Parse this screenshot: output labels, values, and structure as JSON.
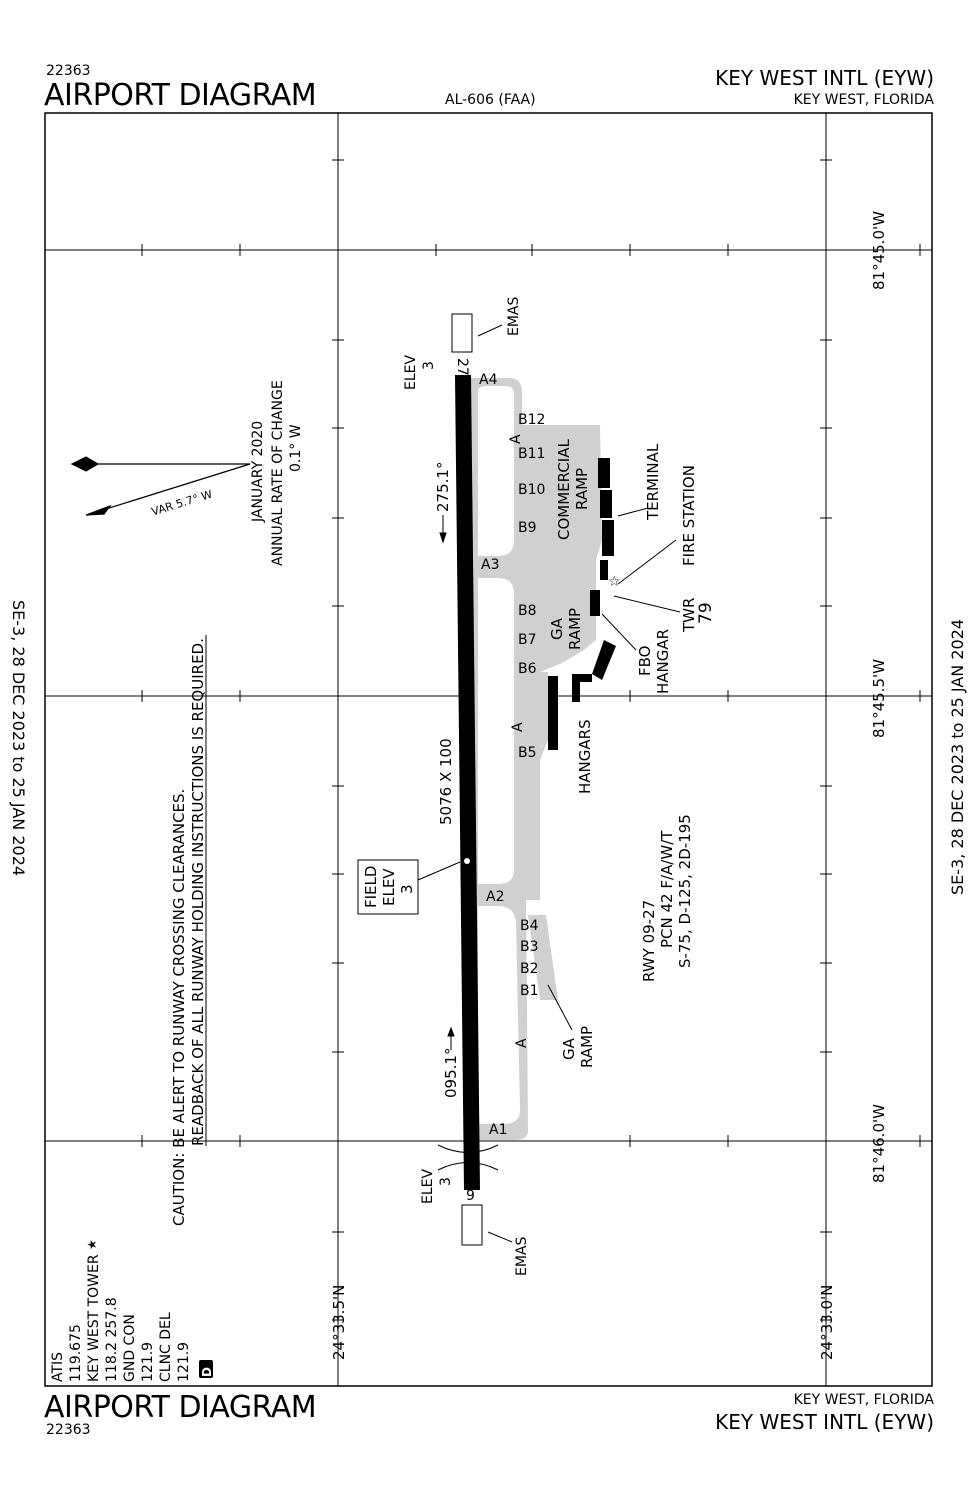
{
  "header": {
    "procedure_number": "22363",
    "title": "AIRPORT DIAGRAM",
    "chart_id": "AL-606 (FAA)",
    "airport_name": "KEY WEST INTL (EYW)",
    "city_state": "KEY WEST, FLORIDA"
  },
  "footer": {
    "title": "AIRPORT DIAGRAM",
    "procedure_number": "22363",
    "city_state": "KEY WEST, FLORIDA",
    "airport_name": "KEY WEST INTL (EYW)"
  },
  "validity": {
    "left": "SE-3,  28 DEC 2023  to  25 JAN 2024",
    "right": "SE-3,  28 DEC 2023  to  25 JAN 2024"
  },
  "coordinates": {
    "lon_top": "81°45.0'W",
    "lon_mid": "81°45.5'W",
    "lon_bot": "81°46.0'W",
    "lat_left": "24°33.5'N",
    "lat_right": "24°33.0'N"
  },
  "magnetic": {
    "var": "VAR 5.7° W",
    "date": "JANUARY 2020",
    "rate_label": "ANNUAL RATE OF CHANGE",
    "rate": "0.1° W"
  },
  "caution": {
    "line1": "CAUTION: BE ALERT TO RUNWAY CROSSING CLEARANCES.",
    "line2": "READBACK OF ALL RUNWAY HOLDING INSTRUCTIONS IS REQUIRED."
  },
  "frequencies": {
    "lines": [
      "ATIS",
      "119.675",
      "KEY WEST TOWER",
      "118.2   257.8",
      "GND CON",
      "121.9",
      "CLNC DEL",
      "121.9"
    ],
    "star": "★",
    "badge": "D"
  },
  "runway": {
    "end_north": "27",
    "end_south": "9",
    "dimensions": "5076  X  100",
    "heading_north": "275.1°",
    "heading_south": "095.1°",
    "elev_label": "ELEV",
    "elev_north": "3",
    "elev_south": "3",
    "info_line1": "RWY 09-27",
    "info_line2": "PCN 42 F/A/W/T",
    "info_line3": "S-75, D-125, 2D-195"
  },
  "field_elev": {
    "line1": "FIELD",
    "line2": "ELEV",
    "line3": "3"
  },
  "emas": "EMAS",
  "taxiways": {
    "A4": "A4",
    "A3": "A3",
    "A2": "A2",
    "A1": "A1",
    "A": "A",
    "B12": "B12",
    "B11": "B11",
    "B10": "B10",
    "B9": "B9",
    "B8": "B8",
    "B7": "B7",
    "B6": "B6",
    "B5": "B5",
    "B4": "B4",
    "B3": "B3",
    "B2": "B2",
    "B1": "B1"
  },
  "facilities": {
    "commercial_ramp_1": "COMMERCIAL",
    "commercial_ramp_2": "RAMP",
    "terminal": "TERMINAL",
    "fire_station": "FIRE STATION",
    "twr": "TWR",
    "twr_height": "79",
    "ga_1": "GA",
    "ga_2": "RAMP",
    "fbo": "FBO",
    "hangar": "HANGAR",
    "hangars": "HANGARS",
    "ga_south_1": "GA",
    "ga_south_2": "RAMP"
  },
  "colors": {
    "pavement": "#d0d0d0",
    "runway": "#000000",
    "frame": "#000000"
  }
}
